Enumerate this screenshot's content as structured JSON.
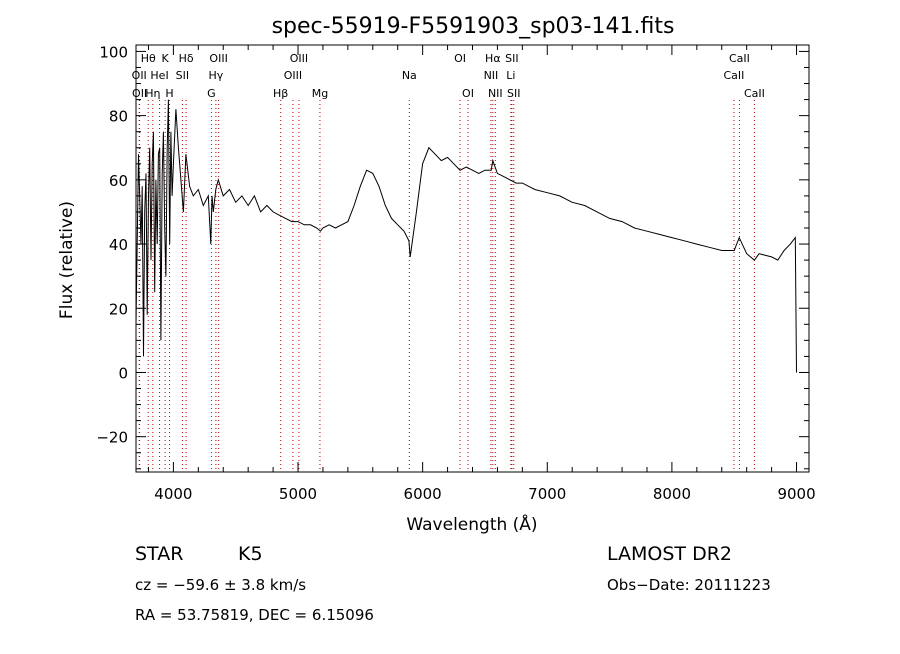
{
  "chart_data": {
    "type": "line",
    "title": "spec-55919-F5591903_sp03-141.fits",
    "xlabel": "Wavelength (Å)",
    "ylabel": "Flux (relative)",
    "xlim": [
      3700,
      9100
    ],
    "ylim": [
      -31,
      102
    ],
    "grid": false,
    "x_ticks": [
      4000,
      5000,
      6000,
      7000,
      8000,
      9000
    ],
    "y_ticks": [
      -20,
      0,
      20,
      40,
      60,
      80,
      100
    ],
    "line_color": "#000000",
    "marker_color": "#c00000",
    "series": [
      {
        "x": [
          3700,
          3720,
          3740,
          3750,
          3760,
          3770,
          3780,
          3790,
          3800,
          3810,
          3820,
          3830,
          3840,
          3850,
          3860,
          3870,
          3880,
          3890,
          3900,
          3910,
          3920,
          3930,
          3940,
          3950,
          3960,
          3970,
          3980,
          3990,
          4000,
          4020,
          4040,
          4060,
          4080,
          4100,
          4130,
          4160,
          4200,
          4240,
          4280,
          4300,
          4310,
          4320,
          4340,
          4360,
          4400,
          4450,
          4500,
          4550,
          4600,
          4650,
          4700,
          4750,
          4800,
          4850,
          4900,
          4950,
          5000,
          5050,
          5100,
          5150,
          5180,
          5200,
          5250,
          5300,
          5350,
          5400,
          5450,
          5500,
          5550,
          5600,
          5650,
          5700,
          5750,
          5800,
          5850,
          5890,
          5900,
          5950,
          6000,
          6050,
          6100,
          6150,
          6200,
          6250,
          6300,
          6350,
          6400,
          6450,
          6500,
          6550,
          6563,
          6600,
          6650,
          6700,
          6750,
          6800,
          6850,
          6900,
          7000,
          7100,
          7200,
          7300,
          7400,
          7500,
          7600,
          7700,
          7800,
          7900,
          8000,
          8100,
          8200,
          8300,
          8400,
          8500,
          8540,
          8600,
          8662,
          8700,
          8800,
          8850,
          8900,
          8950,
          8990,
          9000
        ],
        "y": [
          15,
          68,
          40,
          58,
          5,
          50,
          62,
          18,
          55,
          70,
          35,
          65,
          75,
          25,
          60,
          40,
          68,
          70,
          10,
          62,
          75,
          45,
          30,
          70,
          85,
          40,
          75,
          55,
          65,
          82,
          70,
          60,
          50,
          68,
          58,
          55,
          57,
          52,
          55,
          40,
          55,
          50,
          57,
          60,
          55,
          57,
          53,
          55,
          52,
          55,
          50,
          52,
          50,
          49,
          48,
          47,
          47,
          46,
          46,
          45,
          44,
          45,
          46,
          45,
          46,
          47,
          52,
          58,
          63,
          62,
          58,
          52,
          48,
          46,
          44,
          41,
          36,
          50,
          65,
          70,
          68,
          66,
          67,
          65,
          63,
          64,
          63,
          62,
          63,
          63,
          66,
          62,
          61,
          60,
          59,
          59,
          58,
          57,
          56,
          55,
          53,
          52,
          50,
          48,
          47,
          45,
          44,
          43,
          42,
          41,
          40,
          39,
          38,
          38,
          42,
          37,
          35,
          37,
          36,
          35,
          38,
          40,
          42,
          0
        ]
      }
    ],
    "lines": [
      {
        "x": 3726,
        "label": "OII",
        "row": 2
      },
      {
        "x": 3729,
        "label": "OII",
        "row": 3
      },
      {
        "x": 3798,
        "label": "Hθ",
        "row": 1
      },
      {
        "x": 3835,
        "label": "Hη",
        "row": 3
      },
      {
        "x": 3889,
        "label": "HeI",
        "row": 2
      },
      {
        "x": 3934,
        "label": "K",
        "row": 1
      },
      {
        "x": 3969,
        "label": "H",
        "row": 3
      },
      {
        "x": 4072,
        "label": "SII",
        "row": 2
      },
      {
        "x": 4102,
        "label": "Hδ",
        "row": 1
      },
      {
        "x": 4305,
        "label": "G",
        "row": 3
      },
      {
        "x": 4341,
        "label": "Hγ",
        "row": 2
      },
      {
        "x": 4363,
        "label": "OIII",
        "row": 1
      },
      {
        "x": 4861,
        "label": "Hβ",
        "row": 3
      },
      {
        "x": 4959,
        "label": "OIII",
        "row": 2
      },
      {
        "x": 5007,
        "label": "OIII",
        "row": 1
      },
      {
        "x": 5176,
        "label": "Mg",
        "row": 3
      },
      {
        "x": 5893,
        "label": "Na",
        "row": 2
      },
      {
        "x": 6300,
        "label": "OI",
        "row": 1
      },
      {
        "x": 6364,
        "label": "OI",
        "row": 3
      },
      {
        "x": 6548,
        "label": "NII",
        "row": 2
      },
      {
        "x": 6563,
        "label": "Hα",
        "row": 1
      },
      {
        "x": 6583,
        "label": "NII",
        "row": 3
      },
      {
        "x": 6708,
        "label": "Li",
        "row": 2
      },
      {
        "x": 6716,
        "label": "SII",
        "row": 1
      },
      {
        "x": 6731,
        "label": "SII",
        "row": 3
      },
      {
        "x": 8498,
        "label": "CaII",
        "row": 2
      },
      {
        "x": 8542,
        "label": "CaII",
        "row": 1
      },
      {
        "x": 8662,
        "label": "CaII",
        "row": 3
      }
    ]
  },
  "info": {
    "class": "STAR",
    "subclass": "K5",
    "survey": "LAMOST DR2",
    "cz": "cz = −59.6 ± 3.8 km/s",
    "obs_date": "Obs−Date: 20111223",
    "coords": "RA =  53.75819, DEC =   6.15096"
  }
}
